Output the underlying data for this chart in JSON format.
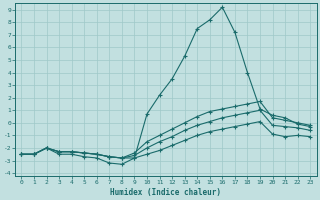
{
  "xlabel": "Humidex (Indice chaleur)",
  "ylabel": "",
  "background_color": "#c2e0e0",
  "grid_color": "#9fc8c8",
  "line_color": "#1a6b6b",
  "xlim": [
    -0.5,
    23.5
  ],
  "ylim": [
    -4.2,
    9.5
  ],
  "xticks": [
    0,
    1,
    2,
    3,
    4,
    5,
    6,
    7,
    8,
    9,
    10,
    11,
    12,
    13,
    14,
    15,
    16,
    17,
    18,
    19,
    20,
    21,
    22,
    23
  ],
  "yticks": [
    -4,
    -3,
    -2,
    -1,
    0,
    1,
    2,
    3,
    4,
    5,
    6,
    7,
    8,
    9
  ],
  "curve1_x": [
    0,
    1,
    2,
    3,
    4,
    5,
    6,
    7,
    8,
    9,
    10,
    11,
    12,
    13,
    14,
    15,
    16,
    17,
    18,
    19,
    20,
    21,
    22,
    23
  ],
  "curve1_y": [
    -2.5,
    -2.5,
    -2.0,
    -2.5,
    -2.5,
    -2.7,
    -2.8,
    -3.2,
    -3.3,
    -2.8,
    0.7,
    2.2,
    3.5,
    5.3,
    7.5,
    8.2,
    9.2,
    7.2,
    4.0,
    1.1,
    0.6,
    0.4,
    -0.1,
    -0.3
  ],
  "curve2_x": [
    0,
    1,
    2,
    3,
    4,
    5,
    6,
    7,
    8,
    9,
    10,
    11,
    12,
    13,
    14,
    15,
    16,
    17,
    18,
    19,
    20,
    21,
    22,
    23
  ],
  "curve2_y": [
    -2.5,
    -2.5,
    -2.0,
    -2.3,
    -2.3,
    -2.4,
    -2.5,
    -2.7,
    -2.8,
    -2.4,
    -1.5,
    -1.0,
    -0.5,
    0.0,
    0.5,
    0.9,
    1.1,
    1.3,
    1.5,
    1.7,
    0.4,
    0.2,
    0.0,
    -0.2
  ],
  "curve3_x": [
    0,
    1,
    2,
    3,
    4,
    5,
    6,
    7,
    8,
    9,
    10,
    11,
    12,
    13,
    14,
    15,
    16,
    17,
    18,
    19,
    20,
    21,
    22,
    23
  ],
  "curve3_y": [
    -2.5,
    -2.5,
    -2.0,
    -2.3,
    -2.3,
    -2.4,
    -2.5,
    -2.7,
    -2.8,
    -2.6,
    -2.0,
    -1.5,
    -1.1,
    -0.6,
    -0.2,
    0.1,
    0.4,
    0.6,
    0.8,
    1.0,
    -0.2,
    -0.3,
    -0.4,
    -0.6
  ],
  "curve4_x": [
    0,
    1,
    2,
    3,
    4,
    5,
    6,
    7,
    8,
    9,
    10,
    11,
    12,
    13,
    14,
    15,
    16,
    17,
    18,
    19,
    20,
    21,
    22,
    23
  ],
  "curve4_y": [
    -2.5,
    -2.5,
    -2.0,
    -2.3,
    -2.3,
    -2.4,
    -2.5,
    -2.7,
    -2.8,
    -2.8,
    -2.5,
    -2.2,
    -1.8,
    -1.4,
    -1.0,
    -0.7,
    -0.5,
    -0.3,
    -0.1,
    0.1,
    -0.9,
    -1.1,
    -1.0,
    -1.1
  ]
}
